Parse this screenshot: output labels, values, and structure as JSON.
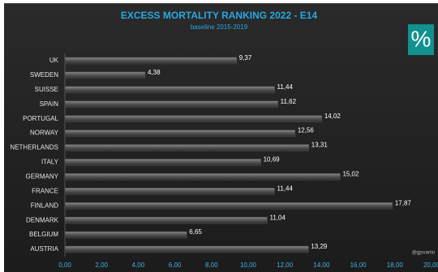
{
  "chart_data": {
    "type": "hbar",
    "title": "EXCESS MORTALITY RANKING 2022 - E14",
    "subtitle": "baseline 2015-2019",
    "badge": "%",
    "annotation": "@gjsvanlo",
    "categories": [
      "UK",
      "SWEDEN",
      "SUISSE",
      "SPAIN",
      "PORTUGAL",
      "NORWAY",
      "NETHERLANDS",
      "ITALY",
      "GERMANY",
      "FRANCE",
      "FINLAND",
      "DENMARK",
      "BELGIUM",
      "AUSTRIA"
    ],
    "values": [
      9.37,
      4.38,
      11.44,
      11.62,
      14.02,
      12.56,
      13.31,
      10.69,
      15.02,
      11.44,
      17.87,
      11.04,
      6.65,
      13.29
    ],
    "value_labels": [
      "9,37",
      "4,38",
      "11,44",
      "11,62",
      "14,02",
      "12,56",
      "13,31",
      "10,69",
      "15,02",
      "11,44",
      "17,87",
      "11,04",
      "6,65",
      "13,29"
    ],
    "color": "#4d4d4d",
    "xlim": [
      0,
      20
    ],
    "xticks": [
      {
        "value": 0,
        "label": "0,00"
      },
      {
        "value": 2,
        "label": "2,00"
      },
      {
        "value": 4,
        "label": "4,00"
      },
      {
        "value": 6,
        "label": "6,00"
      },
      {
        "value": 8,
        "label": "8,00"
      },
      {
        "value": 10,
        "label": "10,00"
      },
      {
        "value": 12,
        "label": "12,00"
      },
      {
        "value": 14,
        "label": "14,00"
      },
      {
        "value": 16,
        "label": "16,00"
      },
      {
        "value": 18,
        "label": "18,00"
      },
      {
        "value": 20,
        "label": "20,00"
      }
    ],
    "grid": false
  }
}
